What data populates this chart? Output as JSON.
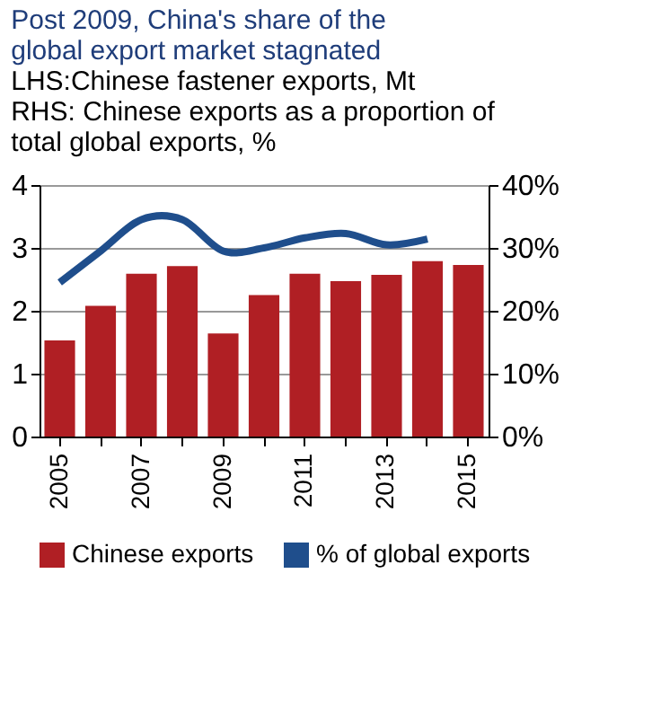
{
  "chart_data": {
    "type": "bar",
    "title": "Post 2009, China's share of the global export market stagnated",
    "subtitle": "LHS:Chinese fastener exports, Mt",
    "annotations": [
      "RHS: Chinese exports as a proportion of total global exports, %"
    ],
    "categories": [
      "2005",
      null,
      "2007",
      null,
      "2009",
      null,
      "2011",
      null,
      "2013",
      null,
      "2015"
    ],
    "series": [
      {
        "name": "Chinese exports",
        "color": "#b01f24",
        "values": [
          1.53,
          2.08,
          2.59,
          2.71,
          1.64,
          2.25,
          2.59,
          2.47,
          2.57,
          2.79,
          2.73
        ]
      },
      {
        "name": "% of global exports",
        "type": "line",
        "axis": "y2",
        "color": "#1f4e8c",
        "values": [
          24.5,
          29.5,
          34.5,
          34.5,
          29.5,
          30,
          31.6,
          32.3,
          30.5,
          31.4,
          null
        ]
      }
    ],
    "ylim": [
      0,
      4
    ],
    "yticks": [
      0,
      1,
      2,
      3,
      4
    ],
    "y2lim": [
      0,
      40
    ],
    "y2ticks": [
      {
        "value": 0,
        "label": "0%"
      },
      {
        "value": 10,
        "label": "10%"
      },
      {
        "value": 20,
        "label": "20%"
      },
      {
        "value": 30,
        "label": "30%"
      },
      {
        "value": 40,
        "label": "40%"
      }
    ],
    "grid": "y",
    "legend": "bottom",
    "line_style": "solid"
  }
}
